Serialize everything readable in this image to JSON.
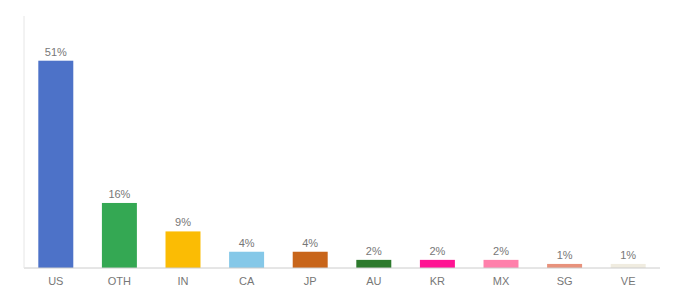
{
  "chart_data": {
    "type": "bar",
    "categories": [
      "US",
      "OTH",
      "IN",
      "CA",
      "JP",
      "AU",
      "KR",
      "MX",
      "SG",
      "VE"
    ],
    "values": [
      51,
      16,
      9,
      4,
      4,
      2,
      2,
      2,
      1,
      1
    ],
    "value_labels": [
      "51%",
      "16%",
      "9%",
      "4%",
      "4%",
      "2%",
      "2%",
      "2%",
      "1%",
      "1%"
    ],
    "colors": [
      "#4d72c8",
      "#34a853",
      "#fbbc04",
      "#85c8e8",
      "#c8651a",
      "#2d7a2d",
      "#ff1493",
      "#ff80ab",
      "#e8927c",
      "#f0ece0"
    ],
    "ylim": [
      0,
      62
    ],
    "data_labels": true,
    "tick_labels": "x"
  }
}
